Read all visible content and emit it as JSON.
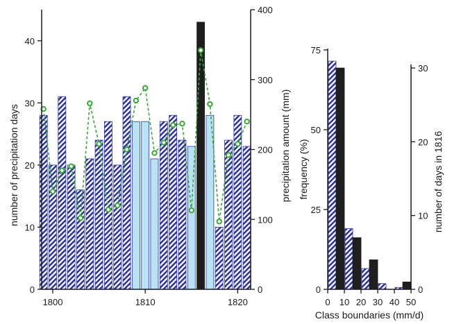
{
  "colors": {
    "hatch_blue": "#2e35a0",
    "light_blue": "#b9e3f5",
    "light_blue_edge": "#2e35a0",
    "black_bar": "#1e1e1e",
    "green_line": "#3aa63a",
    "axis": "#1a1a1a"
  },
  "chart_data": [
    {
      "type": "bar",
      "panel": "left",
      "xlabel": "",
      "ylabel_left": "number of precipitation days",
      "ylabel_right": "precipitation amount (mm)",
      "xlim": [
        1798.8,
        1821.4
      ],
      "ylim_left": [
        0,
        45
      ],
      "ylim_right": [
        0,
        400
      ],
      "xticks": [
        1800,
        1810,
        1820
      ],
      "yticks_left": [
        0,
        10,
        20,
        30,
        40
      ],
      "yticks_right": [
        0,
        100,
        200,
        300,
        400
      ],
      "x": [
        1799,
        1800,
        1801,
        1802,
        1803,
        1804,
        1805,
        1806,
        1807,
        1808,
        1809,
        1810,
        1811,
        1812,
        1813,
        1814,
        1815,
        1816,
        1817,
        1818,
        1819,
        1820,
        1821
      ],
      "days": [
        28,
        20,
        31,
        20,
        16,
        21,
        24,
        27,
        20,
        31,
        27,
        27,
        21,
        27,
        28,
        24,
        23,
        43,
        28,
        10,
        24,
        28,
        23
      ],
      "bar_style": [
        "hatched",
        "hatched",
        "hatched",
        "hatched",
        "hatched",
        "hatched",
        "hatched",
        "hatched",
        "hatched",
        "hatched",
        "light",
        "light",
        "light",
        "hatched",
        "hatched",
        "hatched",
        "light",
        "black",
        "light",
        "hatched",
        "hatched",
        "hatched",
        "hatched"
      ],
      "amount_mm": [
        258,
        140,
        170,
        176,
        102,
        266,
        208,
        114,
        120,
        200,
        270,
        288,
        195,
        210,
        235,
        237,
        113,
        342,
        265,
        97,
        192,
        208,
        240
      ],
      "grid": false,
      "legend": "none"
    },
    {
      "type": "bar",
      "panel": "right",
      "xlabel": "Class boundaries (mm/d)",
      "ylabel_left": "frequency (%)",
      "ylabel_right": "number of days in 1816",
      "xlim": [
        0,
        50
      ],
      "ylim_left": [
        0,
        75
      ],
      "ylim_right": [
        0,
        31
      ],
      "xticks": [
        0,
        10,
        20,
        30,
        40,
        50
      ],
      "yticks_left": [
        0,
        25,
        50,
        75
      ],
      "yticks_right": [
        0,
        10,
        20,
        30
      ],
      "categories": [
        "0-5",
        "5-10",
        "15-20",
        "20-25",
        "25-30",
        "30-35",
        "40-45",
        "45-50"
      ],
      "series": [
        {
          "style": "hatched",
          "x_start": [
            0,
            10,
            20,
            30,
            40
          ],
          "x_end": [
            5,
            15,
            25,
            35,
            45
          ],
          "values_percent": [
            71.5,
            19,
            6.5,
            1.8,
            0.6
          ]
        },
        {
          "style": "black",
          "x_start": [
            5,
            15,
            25,
            45
          ],
          "x_end": [
            10,
            20,
            30,
            50
          ],
          "values_days": [
            30,
            7,
            4,
            1
          ]
        }
      ],
      "grid": false,
      "legend": "none"
    }
  ],
  "ticklabels": {
    "left_x": [
      "1800",
      "1810",
      "1820"
    ],
    "left_y": [
      "0",
      "10",
      "20",
      "30",
      "40"
    ],
    "left_y2": [
      "0",
      "100",
      "200",
      "300",
      "400"
    ],
    "right_x": [
      "0",
      "10",
      "20",
      "30",
      "40",
      "50"
    ],
    "right_y": [
      "0",
      "25",
      "50",
      "75"
    ],
    "right_y2": [
      "0",
      "10",
      "20",
      "30"
    ]
  }
}
